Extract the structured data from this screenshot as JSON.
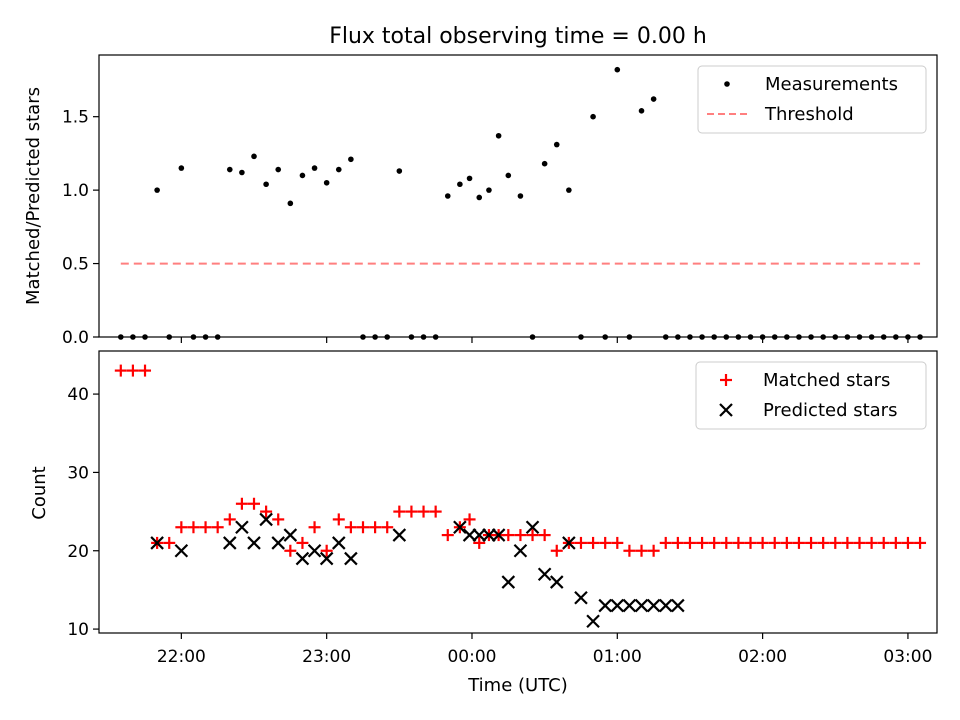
{
  "figure": {
    "title": "Flux total observing time = 0.00 h",
    "xlabel": "Time (UTC)"
  },
  "chart_data": [
    {
      "type": "scatter",
      "ylabel": "Matched/Predicted stars",
      "xlim": [
        "21:26",
        "03:12"
      ],
      "ylim": [
        0,
        1.92
      ],
      "yticks": [
        0.0,
        0.5,
        1.0,
        1.5
      ],
      "ytick_labels": [
        "0.0",
        "0.5",
        "1.0",
        "1.5"
      ],
      "legend_position": "upper right",
      "series": [
        {
          "name": "Measurements",
          "kind": "dot",
          "color": "#000000",
          "x": [
            "21:35",
            "21:40",
            "21:45",
            "21:50",
            "21:55",
            "22:00",
            "22:05",
            "22:10",
            "22:15",
            "22:20",
            "22:25",
            "22:30",
            "22:35",
            "22:40",
            "22:45",
            "22:50",
            "22:55",
            "23:00",
            "23:05",
            "23:10",
            "23:15",
            "23:20",
            "23:25",
            "23:30",
            "23:35",
            "23:40",
            "23:45",
            "23:50",
            "23:55",
            "23:59",
            "00:03",
            "00:07",
            "00:11",
            "00:15",
            "00:20",
            "00:25",
            "00:30",
            "00:35",
            "00:40",
            "00:45",
            "00:50",
            "00:55",
            "01:00",
            "01:05",
            "01:10",
            "01:15",
            "01:20",
            "01:25",
            "01:30",
            "01:35",
            "01:40",
            "01:45",
            "01:50",
            "01:55",
            "02:00",
            "02:05",
            "02:10",
            "02:15",
            "02:20",
            "02:25",
            "02:30",
            "02:35",
            "02:40",
            "02:45",
            "02:50",
            "02:55",
            "03:00",
            "03:05"
          ],
          "y": [
            0,
            0,
            0,
            1.0,
            0,
            1.15,
            0,
            0,
            0,
            1.14,
            1.12,
            1.23,
            1.04,
            1.14,
            0.91,
            1.1,
            1.15,
            1.05,
            1.14,
            1.21,
            0,
            0,
            0,
            1.13,
            0,
            0,
            0,
            0.96,
            1.04,
            1.08,
            0.95,
            1.0,
            1.37,
            1.1,
            0.96,
            0,
            1.18,
            1.31,
            1.0,
            0,
            1.5,
            0,
            1.82,
            0,
            1.54,
            1.62,
            0,
            0,
            0,
            0,
            0,
            0,
            0,
            0,
            0,
            0,
            0,
            0,
            0,
            0,
            0,
            0,
            0,
            0,
            0,
            0,
            0,
            0
          ]
        },
        {
          "name": "Threshold",
          "kind": "dashed-line",
          "color": "#ff7f7f",
          "x": [
            "21:35",
            "03:05"
          ],
          "y": [
            0.5,
            0.5
          ]
        }
      ]
    },
    {
      "type": "scatter",
      "ylabel": "Count",
      "xlim": [
        "21:26",
        "03:12"
      ],
      "ylim": [
        9.5,
        45.5
      ],
      "yticks": [
        10,
        20,
        30,
        40
      ],
      "ytick_labels": [
        "10",
        "20",
        "30",
        "40"
      ],
      "xticks": [
        "22:00",
        "23:00",
        "00:00",
        "01:00",
        "02:00",
        "03:00"
      ],
      "xtick_labels": [
        "22:00",
        "23:00",
        "00:00",
        "01:00",
        "02:00",
        "03:00"
      ],
      "legend_position": "upper right",
      "series": [
        {
          "name": "Matched stars",
          "kind": "plus",
          "color": "#ff0000",
          "x": [
            "21:35",
            "21:40",
            "21:45",
            "21:50",
            "21:55",
            "22:00",
            "22:05",
            "22:10",
            "22:15",
            "22:20",
            "22:25",
            "22:30",
            "22:35",
            "22:40",
            "22:45",
            "22:50",
            "22:55",
            "23:00",
            "23:05",
            "23:10",
            "23:15",
            "23:20",
            "23:25",
            "23:30",
            "23:35",
            "23:40",
            "23:45",
            "23:50",
            "23:55",
            "23:59",
            "00:03",
            "00:07",
            "00:11",
            "00:15",
            "00:20",
            "00:25",
            "00:30",
            "00:35",
            "00:40",
            "00:45",
            "00:50",
            "00:55",
            "01:00",
            "01:05",
            "01:10",
            "01:15",
            "01:20",
            "01:25",
            "01:30",
            "01:35",
            "01:40",
            "01:45",
            "01:50",
            "01:55",
            "02:00",
            "02:05",
            "02:10",
            "02:15",
            "02:20",
            "02:25",
            "02:30",
            "02:35",
            "02:40",
            "02:45",
            "02:50",
            "02:55",
            "03:00",
            "03:05"
          ],
          "y": [
            43,
            43,
            43,
            21,
            21,
            23,
            23,
            23,
            23,
            24,
            26,
            26,
            25,
            24,
            20,
            21,
            23,
            20,
            24,
            23,
            23,
            23,
            23,
            25,
            25,
            25,
            25,
            22,
            23,
            24,
            21,
            22,
            22,
            22,
            22,
            22,
            22,
            20,
            21,
            21,
            21,
            21,
            21,
            20,
            20,
            20,
            21,
            21,
            21,
            21,
            21,
            21,
            21,
            21,
            21,
            21,
            21,
            21,
            21,
            21,
            21,
            21,
            21,
            21,
            21,
            21,
            21,
            21
          ]
        },
        {
          "name": "Predicted stars",
          "kind": "x",
          "color": "#000000",
          "x": [
            "21:50",
            "22:00",
            "22:20",
            "22:25",
            "22:30",
            "22:35",
            "22:40",
            "22:45",
            "22:50",
            "22:55",
            "23:00",
            "23:05",
            "23:10",
            "23:30",
            "23:55",
            "23:59",
            "00:03",
            "00:07",
            "00:11",
            "00:15",
            "00:20",
            "00:25",
            "00:30",
            "00:35",
            "00:40",
            "00:45",
            "00:50",
            "00:55",
            "01:00",
            "01:05",
            "01:10",
            "01:15",
            "01:20",
            "01:25"
          ],
          "y": [
            21,
            20,
            21,
            23,
            21,
            24,
            21,
            22,
            19,
            20,
            19,
            21,
            19,
            22,
            23,
            22,
            22,
            22,
            22,
            16,
            20,
            23,
            17,
            16,
            21,
            14,
            11,
            13,
            13,
            13,
            13,
            13,
            13,
            13
          ]
        }
      ]
    }
  ]
}
